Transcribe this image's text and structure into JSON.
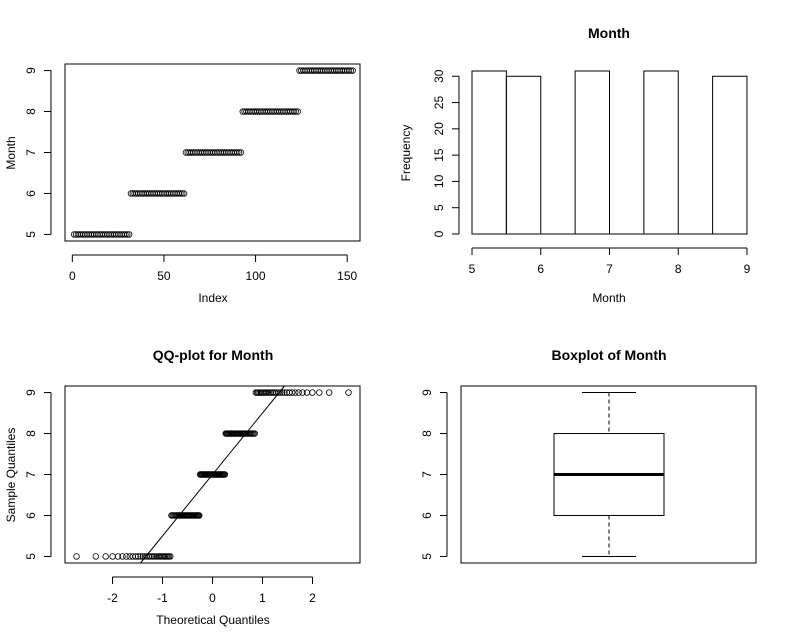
{
  "chart_data": [
    {
      "type": "scatter",
      "title": "",
      "xlabel": "Index",
      "ylabel": "Month",
      "xticks": [
        0,
        50,
        100,
        150
      ],
      "yticks": [
        5,
        6,
        7,
        8,
        9
      ],
      "xlim": [
        -4,
        157
      ],
      "ylim": [
        4.84,
        9.16
      ],
      "series": [
        {
          "month": 5,
          "from": 1,
          "to": 31
        },
        {
          "month": 6,
          "from": 32,
          "to": 61
        },
        {
          "month": 7,
          "from": 62,
          "to": 92
        },
        {
          "month": 8,
          "from": 93,
          "to": 123
        },
        {
          "month": 9,
          "from": 124,
          "to": 153
        }
      ]
    },
    {
      "type": "bar",
      "title": "Month",
      "xlabel": "Month",
      "ylabel": "Frequency",
      "xticks": [
        5,
        6,
        7,
        8,
        9
      ],
      "yticks": [
        0,
        5,
        10,
        15,
        20,
        25,
        30
      ],
      "xlim": [
        5,
        9
      ],
      "ylim": [
        0,
        31
      ],
      "bins": [
        {
          "start": 5.0,
          "end": 5.5,
          "value": 31
        },
        {
          "start": 5.5,
          "end": 6.0,
          "value": 30
        },
        {
          "start": 6.0,
          "end": 6.5,
          "value": 0
        },
        {
          "start": 6.5,
          "end": 7.0,
          "value": 31
        },
        {
          "start": 7.0,
          "end": 7.5,
          "value": 0
        },
        {
          "start": 7.5,
          "end": 8.0,
          "value": 31
        },
        {
          "start": 8.0,
          "end": 8.5,
          "value": 0
        },
        {
          "start": 8.5,
          "end": 9.0,
          "value": 30
        }
      ]
    },
    {
      "type": "scatter",
      "title": "QQ-plot for Month",
      "xlabel": "Theoretical Quantiles",
      "ylabel": "Sample Quantiles",
      "xticks": [
        -2,
        -1,
        0,
        1,
        2
      ],
      "yticks": [
        5,
        6,
        7,
        8,
        9
      ],
      "xlim": [
        -2.95,
        2.95
      ],
      "ylim": [
        4.84,
        9.16
      ],
      "sample_counts": [
        {
          "month": 5,
          "count": 31
        },
        {
          "month": 6,
          "count": 30
        },
        {
          "month": 7,
          "count": 31
        },
        {
          "month": 8,
          "count": 31
        },
        {
          "month": 9,
          "count": 30
        }
      ],
      "reference_line": {
        "x": [
          -1.44,
          1.44
        ],
        "y": [
          4.84,
          9.16
        ]
      }
    },
    {
      "type": "box",
      "title": "Boxplot of Month",
      "yticks": [
        5,
        6,
        7,
        8,
        9
      ],
      "ylim": [
        4.84,
        9.16
      ],
      "min": 5,
      "q1": 6,
      "median": 7,
      "q3": 8,
      "max": 9
    }
  ]
}
